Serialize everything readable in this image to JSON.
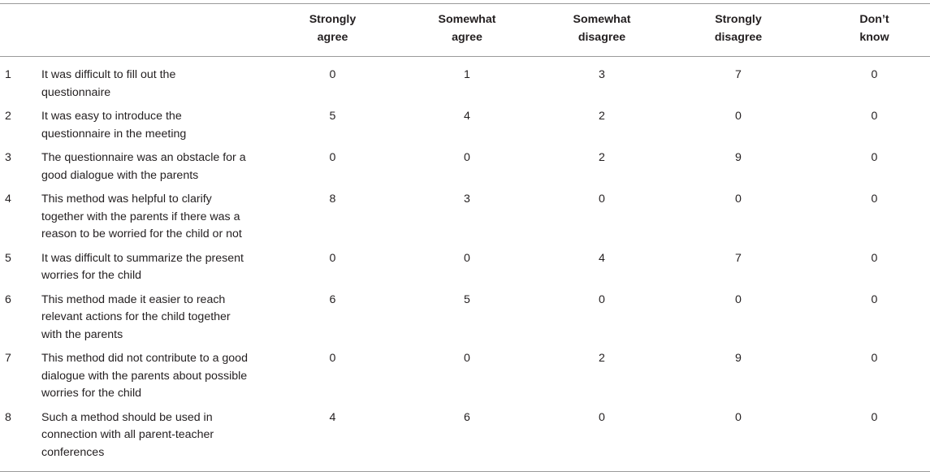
{
  "table": {
    "headers": [
      {
        "line1": "Strongly",
        "line2": "agree"
      },
      {
        "line1": "Somewhat",
        "line2": "agree"
      },
      {
        "line1": "Somewhat",
        "line2": "disagree"
      },
      {
        "line1": "Strongly",
        "line2": "disagree"
      },
      {
        "line1": "Don’t",
        "line2": "know"
      }
    ],
    "rows": [
      {
        "num": "1",
        "statement": "It was difficult to fill out the questionnaire",
        "values": [
          "0",
          "1",
          "3",
          "7",
          "0"
        ]
      },
      {
        "num": "2",
        "statement": "It was easy to introduce the questionnaire in the meeting",
        "values": [
          "5",
          "4",
          "2",
          "0",
          "0"
        ]
      },
      {
        "num": "3",
        "statement": "The questionnaire was an obstacle for a good dialogue with the parents",
        "values": [
          "0",
          "0",
          "2",
          "9",
          "0"
        ]
      },
      {
        "num": "4",
        "statement": "This method was helpful to clarify together with the parents if there was a reason to be worried for the child or not",
        "values": [
          "8",
          "3",
          "0",
          "0",
          "0"
        ]
      },
      {
        "num": "5",
        "statement": "It was difficult to summarize the present worries for the child",
        "values": [
          "0",
          "0",
          "4",
          "7",
          "0"
        ]
      },
      {
        "num": "6",
        "statement": "This method made it easier to reach relevant actions for the child together with the parents",
        "values": [
          "6",
          "5",
          "0",
          "0",
          "0"
        ]
      },
      {
        "num": "7",
        "statement": "This method did not contribute to a good dialogue with the parents about possible worries for the child",
        "values": [
          "0",
          "0",
          "2",
          "9",
          "0"
        ]
      },
      {
        "num": "8",
        "statement": "Such a method should be used in connection with all parent-teacher conferences",
        "values": [
          "4",
          "6",
          "0",
          "0",
          "0"
        ]
      }
    ]
  }
}
